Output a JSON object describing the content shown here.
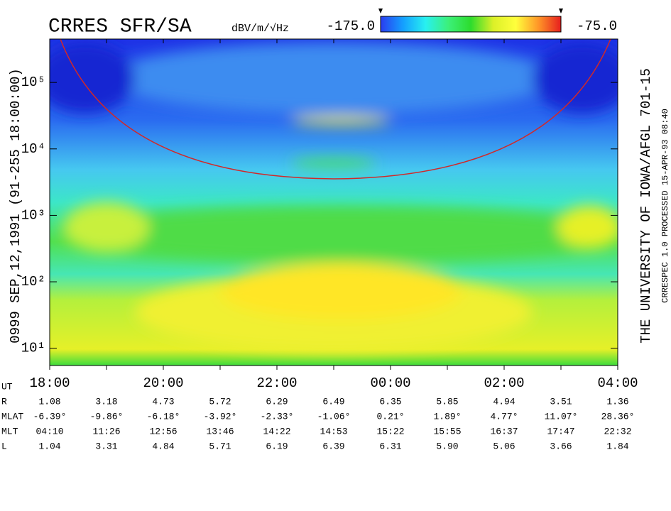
{
  "chart_data": {
    "type": "spectrogram",
    "title": "CRRES SFR/SA",
    "colorbar_label": "dBV/m/√Hz",
    "colorbar_ticks": [
      {
        "value": -175,
        "label": "-175.0"
      },
      {
        "value": -75,
        "label": "-75.0"
      }
    ],
    "colorbar_colors": [
      "#2a3cf0",
      "#14a0ff",
      "#28f0f0",
      "#3cf07a",
      "#2ddc2d",
      "#dcf028",
      "#ffff3c",
      "#ff9628",
      "#e61e1e"
    ],
    "left_label": "0999  SEP,12,1991  (91-255 18:00:00)",
    "right_label": "THE UNIVERSITY OF IOWA/AFGL 701-15",
    "right_sublabel": "CRRESPEC 1.0  PROCESSED 15-APR-93  08:40",
    "log_y": true,
    "ylim": [
      5.5,
      450000
    ],
    "yticks": [
      {
        "value": 10,
        "label": "10¹"
      },
      {
        "value": 100,
        "label": "10²"
      },
      {
        "value": 1000,
        "label": "10³"
      },
      {
        "value": 10000,
        "label": "10⁴"
      },
      {
        "value": 100000,
        "label": "10⁵"
      }
    ],
    "x": [
      "18:00",
      null,
      "20:00",
      null,
      "22:00",
      null,
      "00:00",
      null,
      "02:00",
      null,
      "04:00"
    ],
    "table": {
      "time_label": "UT",
      "rows": [
        {
          "label": "R",
          "values": [
            1.08,
            3.18,
            4.73,
            5.72,
            6.29,
            6.49,
            6.35,
            5.85,
            4.94,
            3.51,
            1.36
          ]
        },
        {
          "label": "MLAT",
          "values": [
            -6.39,
            -9.86,
            -6.18,
            -3.92,
            -2.33,
            -1.06,
            0.21,
            1.89,
            4.77,
            11.07,
            28.36
          ],
          "value_labels": [
            "-6.39°",
            "-9.86°",
            "-6.18°",
            "-3.92°",
            "-2.33°",
            "-1.06°",
            "0.21°",
            "1.89°",
            "4.77°",
            "11.07°",
            "28.36°"
          ]
        },
        {
          "label": "MLT",
          "values": [
            "04:10",
            "11:26",
            "12:56",
            "13:46",
            "14:22",
            "14:53",
            "15:22",
            "15:55",
            "16:37",
            "17:47",
            "22:32"
          ]
        },
        {
          "label": "L",
          "values": [
            1.04,
            3.31,
            4.84,
            5.71,
            6.19,
            6.39,
            6.31,
            5.9,
            5.06,
            3.66,
            1.84
          ],
          "value_labels": [
            "1.04",
            "3.31",
            "4.84",
            "5.71",
            "6.19",
            "6.39",
            "6.31",
            "5.90",
            "5.06",
            "3.66",
            "1.84"
          ]
        }
      ]
    }
  }
}
